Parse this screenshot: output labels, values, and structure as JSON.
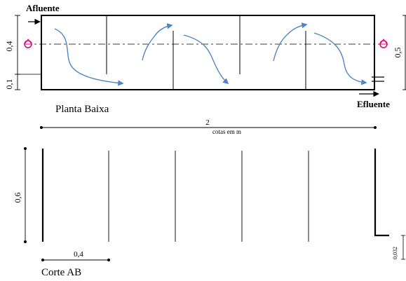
{
  "plan": {
    "title": "Planta Baixa",
    "inlet_label": "Afluente",
    "outlet_label": "Efluente",
    "dim_inlet_upper": "0,4",
    "dim_inlet_lower": "0,1",
    "dim_outlet": "0,5"
  },
  "units_note": "cotas em m",
  "total_length": "2",
  "section": {
    "title": "Corte AB",
    "dim_height": "0,6",
    "dim_spacing": "0,4",
    "dim_outlet": "0,032"
  },
  "colors": {
    "flow_arrows": "#4f86c6",
    "section_marker": "#e6007e",
    "lines": "#000000"
  }
}
